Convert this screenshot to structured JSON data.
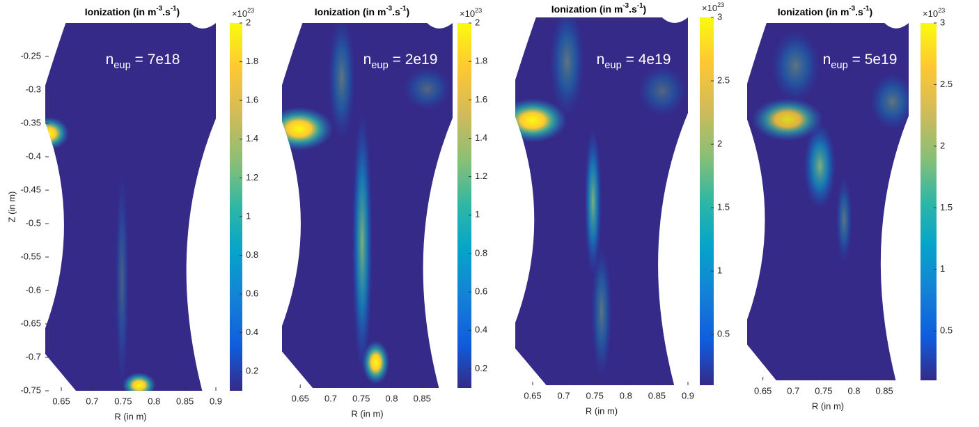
{
  "chart_data": [
    {
      "type": "heatmap",
      "title": [
        "Ionization (in m",
        "-3",
        ".s",
        "-1",
        ")"
      ],
      "annotation": [
        "n",
        "eup",
        " = 7e18"
      ],
      "xlabel": "R (in m)",
      "ylabel": "Z (in m)",
      "xlim": [
        0.624,
        0.9
      ],
      "xticks": [
        0.65,
        0.7,
        0.75,
        0.8,
        0.85,
        0.9
      ],
      "ylim": [
        -0.75,
        -0.2
      ],
      "yticks": [
        -0.25,
        -0.3,
        -0.35,
        -0.4,
        -0.45,
        -0.5,
        -0.55,
        -0.6,
        -0.65,
        -0.7,
        -0.75
      ],
      "colorbar": {
        "lim": [
          0.1,
          2
        ],
        "ticks": [
          0.2,
          0.4,
          0.6,
          0.8,
          1,
          1.2,
          1.4,
          1.6,
          1.8,
          2
        ],
        "multiplier": [
          "×10",
          "23"
        ]
      }
    },
    {
      "type": "heatmap",
      "title": [
        "Ionization (in m",
        "-3",
        ".s",
        "-1",
        ")"
      ],
      "annotation": [
        "n",
        "eup",
        " = 2e19"
      ],
      "xlabel": "R (in m)",
      "xlim": [
        0.62,
        0.9
      ],
      "xticks": [
        0.65,
        0.7,
        0.75,
        0.8,
        0.85
      ],
      "ylim": [
        -0.75,
        -0.2
      ],
      "colorbar": {
        "lim": [
          0.1,
          2
        ],
        "ticks": [
          0.2,
          0.4,
          0.6,
          0.8,
          1,
          1.2,
          1.4,
          1.6,
          1.8,
          2
        ],
        "multiplier": [
          "×10",
          "23"
        ]
      }
    },
    {
      "type": "heatmap",
      "title": [
        "Ionization (in m",
        "-3",
        ".s",
        "-1",
        ")"
      ],
      "annotation": [
        "n",
        "eup",
        " = 4e19"
      ],
      "xlabel": "R (in m)",
      "xlim": [
        0.622,
        0.9
      ],
      "xticks": [
        0.65,
        0.7,
        0.75,
        0.8,
        0.85,
        0.9
      ],
      "ylim": [
        -0.75,
        -0.2
      ],
      "colorbar": {
        "lim": [
          0.1,
          3
        ],
        "ticks": [
          0.5,
          1,
          1.5,
          2,
          2.5,
          3
        ],
        "multiplier": [
          "×10",
          "23"
        ]
      }
    },
    {
      "type": "heatmap",
      "title": [
        "Ionization (in m",
        "-3",
        ".s",
        "-1",
        ")"
      ],
      "annotation": [
        "n",
        "eup",
        " = 5e19"
      ],
      "xlabel": "R (in m)",
      "xlim": [
        0.624,
        0.89
      ],
      "xticks": [
        0.65,
        0.7,
        0.75,
        0.8,
        0.85
      ],
      "ylim": [
        -0.75,
        -0.2
      ],
      "colorbar": {
        "lim": [
          0.1,
          3
        ],
        "ticks": [
          0.5,
          1,
          1.5,
          2,
          2.5,
          3
        ],
        "multiplier": [
          "×10",
          "23"
        ]
      }
    }
  ]
}
